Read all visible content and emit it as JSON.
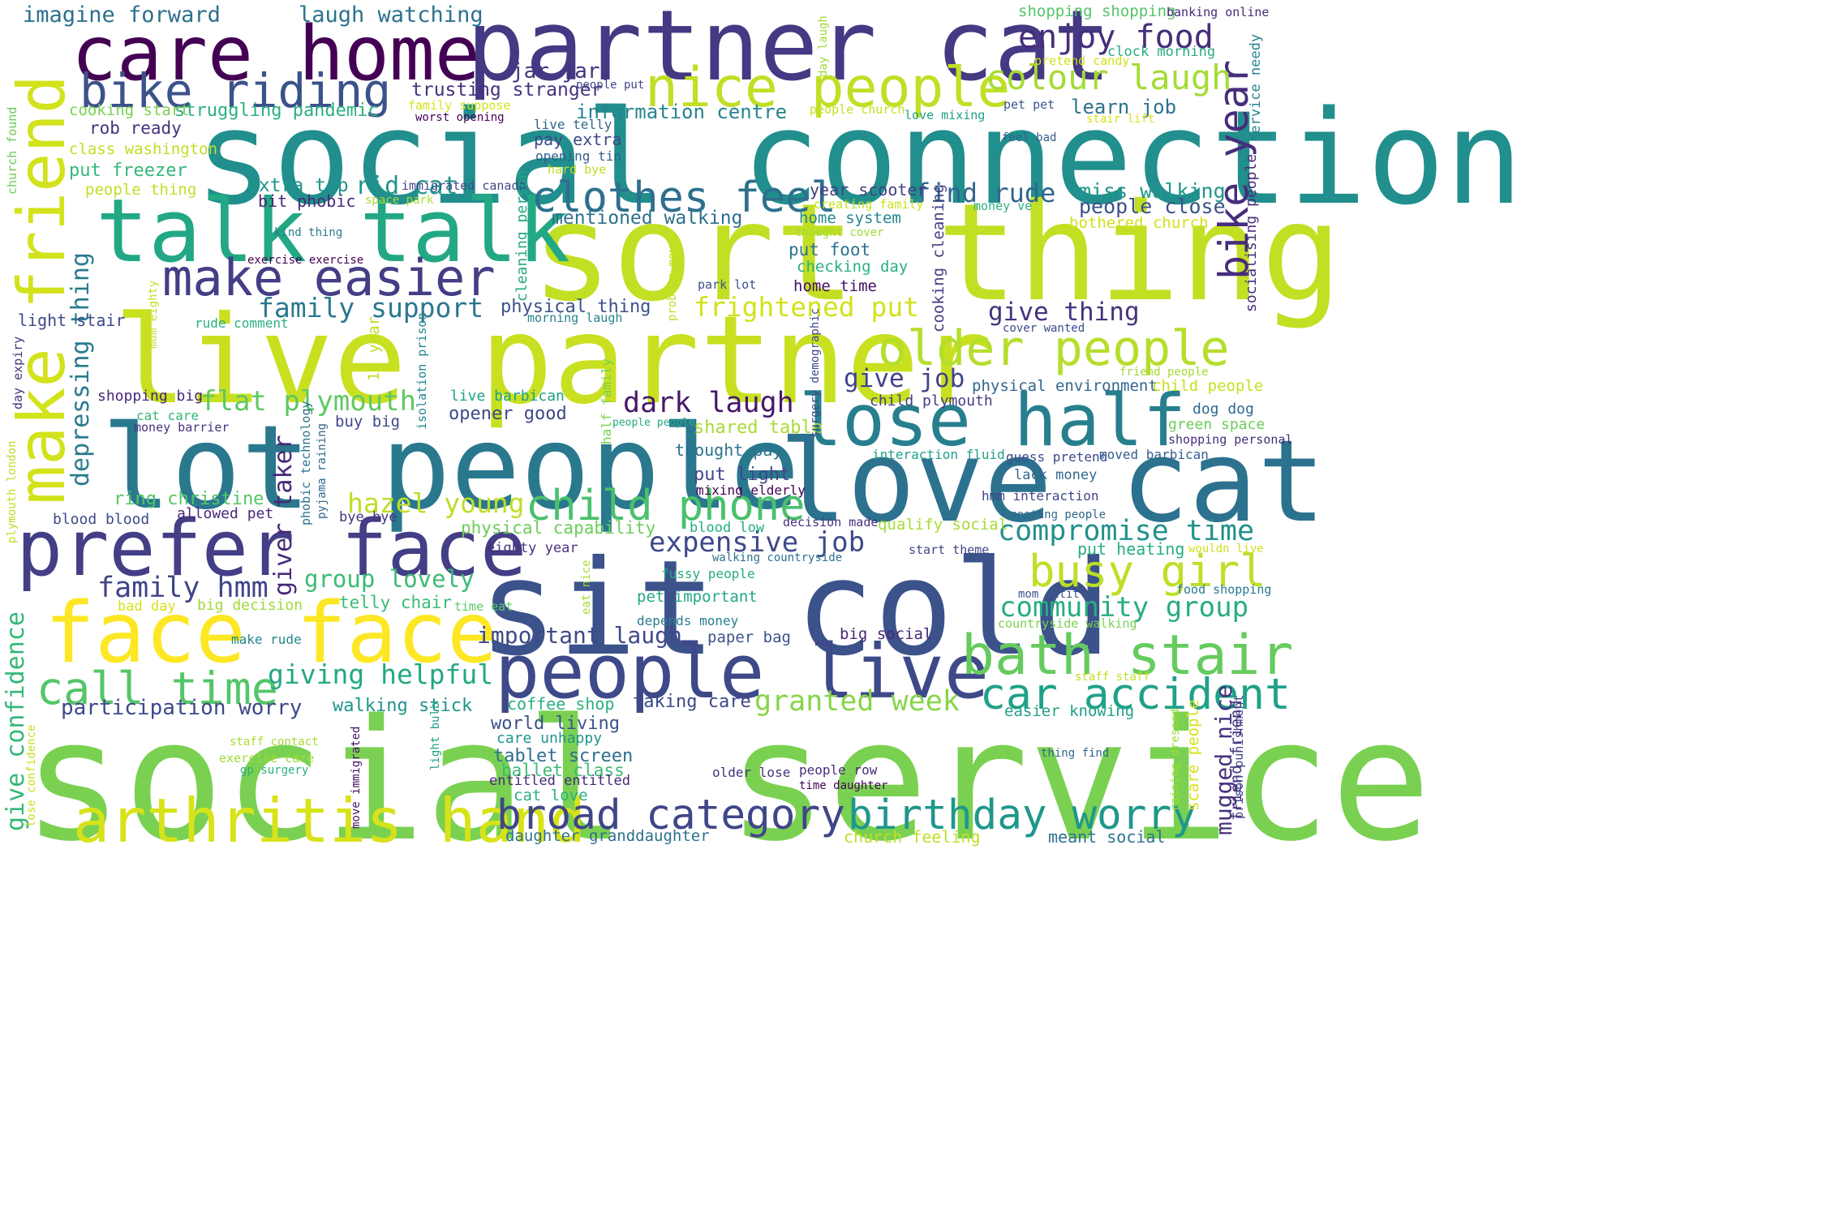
{
  "palette": {
    "background": "#ffffff",
    "colormap": "viridis"
  },
  "words": [
    {
      "text": "social service",
      "color": "#7ad151"
    },
    {
      "text": "social connection",
      "color": "#218f8d"
    },
    {
      "text": "sort thing",
      "color": "#c2df23"
    },
    {
      "text": "live partner",
      "color": "#c8e020"
    },
    {
      "text": "partner cat",
      "color": "#443983"
    },
    {
      "text": "sit cold",
      "color": "#3b528b"
    },
    {
      "text": "lot people",
      "color": "#2a788e"
    },
    {
      "text": "love cat",
      "color": "#2c728e"
    },
    {
      "text": "care home",
      "color": "#440154"
    },
    {
      "text": "talk talk",
      "color": "#22a884"
    },
    {
      "text": "face face",
      "color": "#fde725"
    },
    {
      "text": "prefer face",
      "color": "#433e85"
    },
    {
      "text": "people live",
      "color": "#3e4989"
    },
    {
      "text": "make friend",
      "color": "#d2e21b"
    },
    {
      "text": "lose half",
      "color": "#277f8e"
    },
    {
      "text": "arthritis hand",
      "color": "#d8e219"
    },
    {
      "text": "nice people",
      "color": "#c0df25"
    },
    {
      "text": "bath stair",
      "color": "#65cb5e"
    },
    {
      "text": "bike riding",
      "color": "#3b528b"
    },
    {
      "text": "make easier",
      "color": "#433e85"
    },
    {
      "text": "older people",
      "color": "#b5de2b"
    },
    {
      "text": "clothes feel",
      "color": "#2d708e"
    },
    {
      "text": "broad category",
      "color": "#404688"
    },
    {
      "text": "birthday worry",
      "color": "#1f978b"
    },
    {
      "text": "call time",
      "color": "#54c568"
    },
    {
      "text": "car accident",
      "color": "#1fa188"
    },
    {
      "text": "busy girl",
      "color": "#bddf26"
    },
    {
      "text": "child phone",
      "color": "#4ac16d"
    },
    {
      "text": "bike year",
      "color": "#472d7b"
    },
    {
      "text": "enjoy food",
      "color": "#472d7b"
    },
    {
      "text": "colour laugh",
      "color": "#a5db36"
    },
    {
      "text": "family support",
      "color": "#2a788e"
    },
    {
      "text": "compromise time",
      "color": "#21918c"
    },
    {
      "text": "community group",
      "color": "#28ae80"
    },
    {
      "text": "expensive job",
      "color": "#3e4989"
    },
    {
      "text": "dark laugh",
      "color": "#48186a"
    },
    {
      "text": "flat plymouth",
      "color": "#5ec962"
    },
    {
      "text": "frightened put",
      "color": "#d2e21b"
    },
    {
      "text": "hazel young",
      "color": "#bddf26"
    },
    {
      "text": "giving helpful",
      "color": "#22a884"
    },
    {
      "text": "family hmm",
      "color": "#414487"
    },
    {
      "text": "granted week",
      "color": "#86d549"
    },
    {
      "text": "give thing",
      "color": "#46327e"
    },
    {
      "text": "give job",
      "color": "#414487"
    },
    {
      "text": "find rude",
      "color": "#31668e"
    },
    {
      "text": "depressing thing",
      "color": "#297b8e"
    },
    {
      "text": "give confidence",
      "color": "#35b779"
    },
    {
      "text": "group lovely",
      "color": "#3bbb75"
    },
    {
      "text": "important laugh",
      "color": "#3e4989"
    },
    {
      "text": "participation worry",
      "color": "#3e4989"
    },
    {
      "text": "giver taker",
      "color": "#482878"
    },
    {
      "text": "mugged nice",
      "color": "#46327e"
    },
    {
      "text": "laugh watching",
      "color": "#2c728e"
    },
    {
      "text": "imagine forward",
      "color": "#2d708e"
    },
    {
      "text": "jar jar",
      "color": "#46327e"
    },
    {
      "text": "trusting stranger",
      "color": "#46327e"
    },
    {
      "text": "learn job",
      "color": "#2c728e"
    },
    {
      "text": "information centre",
      "color": "#25858e"
    },
    {
      "text": "struggling pandemic",
      "color": "#2ab07f"
    },
    {
      "text": "cooking start",
      "color": "#7ad151"
    },
    {
      "text": "rob ready",
      "color": "#46327e"
    },
    {
      "text": "pay extra",
      "color": "#3e4989"
    },
    {
      "text": "live telly",
      "color": "#31688e"
    },
    {
      "text": "class washington",
      "color": "#c0df25"
    },
    {
      "text": "put freezer",
      "color": "#35b779"
    },
    {
      "text": "people thing",
      "color": "#c2df23"
    },
    {
      "text": "extra top",
      "color": "#1f958b"
    },
    {
      "text": "rid cat",
      "color": "#1f958b"
    },
    {
      "text": "bit phobic",
      "color": "#482878"
    },
    {
      "text": "immigrated canada",
      "color": "#3e4989"
    },
    {
      "text": "year scooter",
      "color": "#433e85"
    },
    {
      "text": "miss walking",
      "color": "#1f978b"
    },
    {
      "text": "people close",
      "color": "#3b528b"
    },
    {
      "text": "mentioned walking",
      "color": "#2d708e"
    },
    {
      "text": "home system",
      "color": "#24868e"
    },
    {
      "text": "put foot",
      "color": "#2c728e"
    },
    {
      "text": "checking day",
      "color": "#2ab07f"
    },
    {
      "text": "home time",
      "color": "#471063"
    },
    {
      "text": "physical thing",
      "color": "#3b528b"
    },
    {
      "text": "morning laugh",
      "color": "#26828e"
    },
    {
      "text": "light stair",
      "color": "#3e4989"
    },
    {
      "text": "rude comment",
      "color": "#2ab07f"
    },
    {
      "text": "shopping big",
      "color": "#482878"
    },
    {
      "text": "live barbican",
      "color": "#1fa188"
    },
    {
      "text": "opener good",
      "color": "#3e4989"
    },
    {
      "text": "cat care",
      "color": "#35b779"
    },
    {
      "text": "money barrier",
      "color": "#46327e"
    },
    {
      "text": "buy big",
      "color": "#3e4989"
    },
    {
      "text": "ring christine",
      "color": "#54c568"
    },
    {
      "text": "blood blood",
      "color": "#3e4989"
    },
    {
      "text": "allowed pet",
      "color": "#482878"
    },
    {
      "text": "bye bye",
      "color": "#46327e"
    },
    {
      "text": "physical capability",
      "color": "#6ccd5a"
    },
    {
      "text": "blood low",
      "color": "#25ab82"
    },
    {
      "text": "qualify social",
      "color": "#a8db34"
    },
    {
      "text": "decision made",
      "color": "#46327e"
    },
    {
      "text": "shared table",
      "color": "#a8db34"
    },
    {
      "text": "thought pay",
      "color": "#2c728e"
    },
    {
      "text": "put light",
      "color": "#3e4989"
    },
    {
      "text": "mixing elderly",
      "color": "#440154"
    },
    {
      "text": "child plymouth",
      "color": "#433e85"
    },
    {
      "text": "physical environment",
      "color": "#31668e"
    },
    {
      "text": "child people",
      "color": "#c8e020"
    },
    {
      "text": "friend people",
      "color": "#a5db36"
    },
    {
      "text": "dog dog",
      "color": "#31688e"
    },
    {
      "text": "green space",
      "color": "#6ccd5a"
    },
    {
      "text": "shopping personal",
      "color": "#472d7b"
    },
    {
      "text": "guess pretend",
      "color": "#3e4989"
    },
    {
      "text": "moved barbican",
      "color": "#355f8d"
    },
    {
      "text": "lack money",
      "color": "#31688e"
    },
    {
      "text": "hmm interaction",
      "color": "#404688"
    },
    {
      "text": "meeting people",
      "color": "#31688e"
    },
    {
      "text": "interaction fluid",
      "color": "#1fa188"
    },
    {
      "text": "eighty year",
      "color": "#46327e"
    },
    {
      "text": "walking countryside",
      "color": "#2c728e"
    },
    {
      "text": "start theme",
      "color": "#404688"
    },
    {
      "text": "put heating",
      "color": "#27ad81"
    },
    {
      "text": "wouldn live",
      "color": "#d2e21b"
    },
    {
      "text": "fussy people",
      "color": "#25ab82"
    },
    {
      "text": "pet important",
      "color": "#22a884"
    },
    {
      "text": "depends money",
      "color": "#277f8e"
    },
    {
      "text": "paper bag",
      "color": "#3b528b"
    },
    {
      "text": "big social",
      "color": "#482878"
    },
    {
      "text": "mom entitled",
      "color": "#39568c"
    },
    {
      "text": "food shopping",
      "color": "#2a788e"
    },
    {
      "text": "countryside walking",
      "color": "#7ad151"
    },
    {
      "text": "bad day",
      "color": "#d8e219"
    },
    {
      "text": "big decision",
      "color": "#a0da39"
    },
    {
      "text": "telly chair",
      "color": "#3bbb75"
    },
    {
      "text": "time eat",
      "color": "#5ec962"
    },
    {
      "text": "make rude",
      "color": "#24868e"
    },
    {
      "text": "coffee shop",
      "color": "#2ab07f"
    },
    {
      "text": "taking care",
      "color": "#3e4989"
    },
    {
      "text": "walking stick",
      "color": "#1f958b"
    },
    {
      "text": "world living",
      "color": "#3b528b"
    },
    {
      "text": "care unhappy",
      "color": "#1f968b"
    },
    {
      "text": "tablet screen",
      "color": "#2d708e"
    },
    {
      "text": "ballet class",
      "color": "#3bbb75"
    },
    {
      "text": "entitled entitled",
      "color": "#482878"
    },
    {
      "text": "cat love",
      "color": "#2ab07f"
    },
    {
      "text": "daughter granddaughter",
      "color": "#2d708e"
    },
    {
      "text": "church feeling",
      "color": "#c0df25"
    },
    {
      "text": "meant social",
      "color": "#2c728e"
    },
    {
      "text": "easier knowing",
      "color": "#1fa188"
    },
    {
      "text": "staff staff",
      "color": "#c0df25"
    },
    {
      "text": "thing find",
      "color": "#31688e"
    },
    {
      "text": "older lose",
      "color": "#46327e"
    },
    {
      "text": "people row",
      "color": "#472d7b"
    },
    {
      "text": "time daughter",
      "color": "#440154"
    },
    {
      "text": "staff contact",
      "color": "#a8db34"
    },
    {
      "text": "exercise care",
      "color": "#a0da39"
    },
    {
      "text": "gp surgery",
      "color": "#2ab07f"
    },
    {
      "text": "shopping shopping",
      "color": "#54c568"
    },
    {
      "text": "banking online",
      "color": "#482878"
    },
    {
      "text": "pretend candy",
      "color": "#d2e21b"
    },
    {
      "text": "clock morning",
      "color": "#27ad81"
    },
    {
      "text": "people put",
      "color": "#3e4989"
    },
    {
      "text": "family suppose",
      "color": "#d8e219"
    },
    {
      "text": "worst opening",
      "color": "#440154"
    },
    {
      "text": "people church",
      "color": "#c8e020"
    },
    {
      "text": "love mixing",
      "color": "#1fa188"
    },
    {
      "text": "pet pet",
      "color": "#39568c"
    },
    {
      "text": "stair lift",
      "color": "#d8e219"
    },
    {
      "text": "feel bad",
      "color": "#33638d"
    },
    {
      "text": "opening tin",
      "color": "#355f8d"
    },
    {
      "text": "hard bye",
      "color": "#bddf26"
    },
    {
      "text": "space park",
      "color": "#a8db34"
    },
    {
      "text": "creating family",
      "color": "#c8e020"
    },
    {
      "text": "money ve",
      "color": "#2ab07f"
    },
    {
      "text": "bothered church",
      "color": "#d2e21b"
    },
    {
      "text": "kind thing",
      "color": "#287d8e"
    },
    {
      "text": "thought cover",
      "color": "#a0da39"
    },
    {
      "text": "exercise exercise",
      "color": "#440154"
    },
    {
      "text": "park lot",
      "color": "#3b528b"
    },
    {
      "text": "cover wanted",
      "color": "#3e4989"
    },
    {
      "text": "people people",
      "color": "#25ab82"
    },
    {
      "text": "church found",
      "color": "#6ccd5a"
    },
    {
      "text": "mom eighty",
      "color": "#bddf26"
    },
    {
      "text": "day expiry",
      "color": "#46327e"
    },
    {
      "text": "plymouth london",
      "color": "#bddf26"
    },
    {
      "text": "lose confidence",
      "color": "#c8e020"
    },
    {
      "text": "move immigrated",
      "color": "#471063"
    },
    {
      "text": "phobic technology",
      "color": "#2c728e"
    },
    {
      "text": "pyjama raining",
      "color": "#31688e"
    },
    {
      "text": "10 year",
      "color": "#c0df25"
    },
    {
      "text": "isolation prison",
      "color": "#24868e"
    },
    {
      "text": "light bulb",
      "color": "#1fa188"
    },
    {
      "text": "cleaning person",
      "color": "#22a884"
    },
    {
      "text": "problem moved",
      "color": "#c0df25"
    },
    {
      "text": "cooking cleaning",
      "color": "#433e85"
    },
    {
      "text": "surgery demographic",
      "color": "#3e4989"
    },
    {
      "text": "half family",
      "color": "#7ad151"
    },
    {
      "text": "eat nice",
      "color": "#a5db36"
    },
    {
      "text": "day laugh",
      "color": "#a0da39"
    },
    {
      "text": "service needy",
      "color": "#26828e"
    },
    {
      "text": "socialising people",
      "color": "#472d7b"
    },
    {
      "text": "scare people",
      "color": "#d8e219"
    },
    {
      "text": "raining dressed",
      "color": "#a0da39"
    },
    {
      "text": "friend friend",
      "color": "#46327e"
    },
    {
      "text": "prison punishment",
      "color": "#404688"
    }
  ]
}
